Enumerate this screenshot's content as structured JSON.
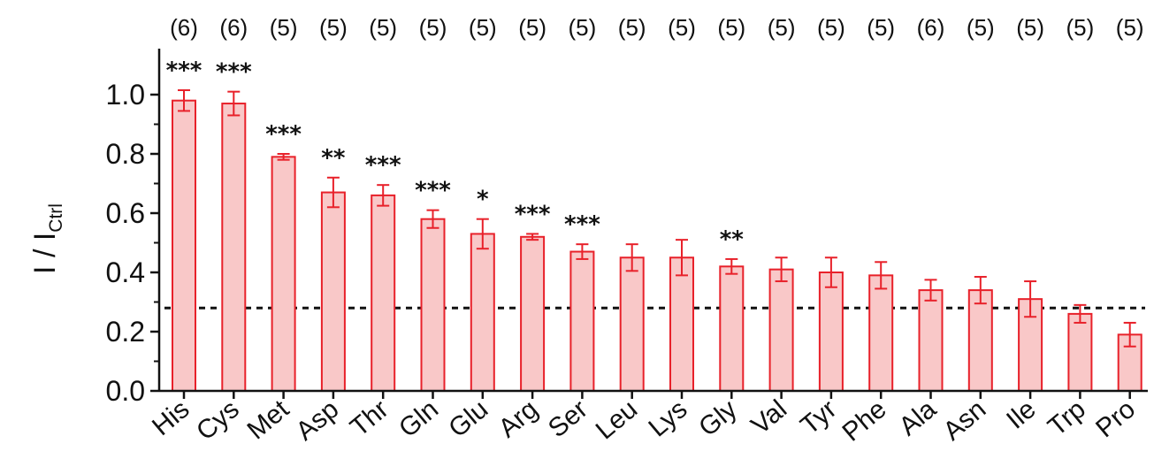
{
  "chart_data": {
    "type": "bar",
    "ylabel_main": "I / I",
    "ylabel_sub": "Ctrl",
    "ylim": [
      0,
      1.1
    ],
    "yticks": [
      0.0,
      0.2,
      0.4,
      0.6,
      0.8,
      1.0
    ],
    "ytick_labels": [
      "0.0",
      "0.2",
      "0.4",
      "0.6",
      "0.8",
      "1.0"
    ],
    "categories": [
      "His",
      "Cys",
      "Met",
      "Asp",
      "Thr",
      "Gln",
      "Glu",
      "Arg",
      "Ser",
      "Leu",
      "Lys",
      "Gly",
      "Val",
      "Tyr",
      "Phe",
      "Ala",
      "Asn",
      "Ile",
      "Trp",
      "Pro"
    ],
    "values": [
      0.98,
      0.97,
      0.79,
      0.67,
      0.66,
      0.58,
      0.53,
      0.52,
      0.47,
      0.45,
      0.45,
      0.42,
      0.41,
      0.4,
      0.39,
      0.34,
      0.34,
      0.31,
      0.26,
      0.19
    ],
    "errors": [
      0.035,
      0.04,
      0.01,
      0.05,
      0.035,
      0.03,
      0.05,
      0.01,
      0.025,
      0.045,
      0.06,
      0.025,
      0.04,
      0.05,
      0.045,
      0.035,
      0.045,
      0.06,
      0.03,
      0.04
    ],
    "n_labels": [
      "(6)",
      "(6)",
      "(5)",
      "(5)",
      "(5)",
      "(5)",
      "(5)",
      "(5)",
      "(5)",
      "(5)",
      "(5)",
      "(5)",
      "(5)",
      "(5)",
      "(5)",
      "(6)",
      "(5)",
      "(5)",
      "(5)",
      "(5)"
    ],
    "significance": [
      "***",
      "***",
      "***",
      "**",
      "***",
      "***",
      "*",
      "***",
      "***",
      "",
      "",
      "**",
      "",
      "",
      "",
      "",
      "",
      "",
      "",
      ""
    ],
    "reference_line": 0.28,
    "bar_fill": "#f9c8c8",
    "bar_stroke": "#e8212a",
    "axis_color": "#111111",
    "grid": false
  }
}
